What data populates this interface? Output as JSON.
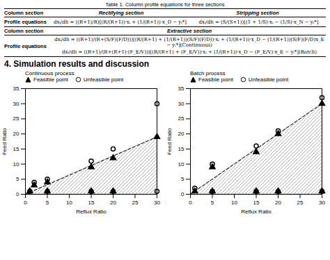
{
  "title": "Table 1. Column profile equations for three sections",
  "table": [
    {
      "header": [
        "Column section",
        "Rectifying section",
        "Stripping section"
      ],
      "label": "Profile equations",
      "cells": [
        "dxᵢ/dh = ((R+1)/R)[(R/(R+1))·xᵢ + (1/(R+1))·x_D − yᵢ*]",
        "dxᵢ/dh = (S/(S+1))[(1 + 1/S)·xᵢ − (1/S)·x_N − yᵢ*]"
      ]
    },
    {
      "header": [
        "Column section",
        "Extractive section"
      ],
      "label": "Profile equations",
      "cells": [
        "dxᵢ/dh = ((R+1)/(R+(S/F)(F/D)))[(R/(R+1) + (1/(R+1))(S/F)(F/D))·xᵢ + (1/(R+1))·x_D − (1/(R+1))(S/F)(F/D)x_E − yᵢ*](Continuous)",
        "dxᵢ/dh = ((R+1)/(R+(R+1)·(F_E/V)))[(R/(R+1) + (F_E/V))·xᵢ + (1/(R+1))·x_D − (F_E/V)·x_E − yᵢ*](Batch)"
      ]
    }
  ],
  "heading": "4. Simulation results and discussion",
  "chart_data": [
    {
      "type": "scatter",
      "title": "Continuous process",
      "xlabel": "Reflux Ratio",
      "ylabel": "Feed Ratio",
      "xlim": [
        0,
        30
      ],
      "ylim": [
        0,
        35
      ],
      "xticks": [
        0,
        5,
        10,
        15,
        20,
        25,
        30
      ],
      "yticks": [
        0,
        5,
        10,
        15,
        20,
        25,
        30,
        35
      ],
      "legend": "upper left",
      "series": [
        {
          "name": "Feasible point",
          "marker": "triangle",
          "color": "black",
          "x": [
            1,
            2,
            5,
            5,
            15,
            15,
            20,
            20,
            30
          ],
          "y": [
            1,
            3,
            1,
            4,
            1,
            9,
            1,
            12,
            19
          ]
        },
        {
          "name": "Unfeasible point",
          "marker": "open circle",
          "color": "black",
          "x": [
            1,
            2,
            5,
            5,
            15,
            15,
            20,
            20,
            30,
            30
          ],
          "y": [
            1,
            4,
            1,
            5,
            1,
            11,
            1,
            15,
            1,
            30
          ]
        }
      ],
      "boundary": {
        "x": [
          0,
          30
        ],
        "y": [
          0,
          19
        ],
        "line_style": "dashed",
        "color": "black"
      }
    },
    {
      "type": "scatter",
      "title": "Batch process",
      "xlabel": "Reflux Ratio",
      "ylabel": "Feed Ratio",
      "xlim": [
        0,
        30
      ],
      "ylim": [
        0,
        35
      ],
      "xticks": [
        0,
        5,
        10,
        15,
        20,
        25,
        30
      ],
      "yticks": [
        0,
        5,
        10,
        15,
        20,
        25,
        30,
        35
      ],
      "legend": "upper left",
      "series": [
        {
          "name": "Feasible point",
          "marker": "triangle",
          "color": "black",
          "x": [
            1,
            5,
            5,
            15,
            15,
            20,
            20,
            30,
            30
          ],
          "y": [
            1,
            1,
            9,
            1,
            14,
            1,
            20,
            1,
            30
          ]
        },
        {
          "name": "Unfeasible point",
          "marker": "open circle",
          "color": "black",
          "x": [
            1,
            5,
            5,
            15,
            15,
            20,
            20,
            30,
            30
          ],
          "y": [
            2,
            1,
            10,
            1,
            16,
            1,
            21,
            1,
            32
          ]
        }
      ],
      "boundary": {
        "x": [
          0,
          30
        ],
        "y": [
          0,
          30
        ],
        "line_style": "dashed",
        "color": "black"
      }
    }
  ]
}
